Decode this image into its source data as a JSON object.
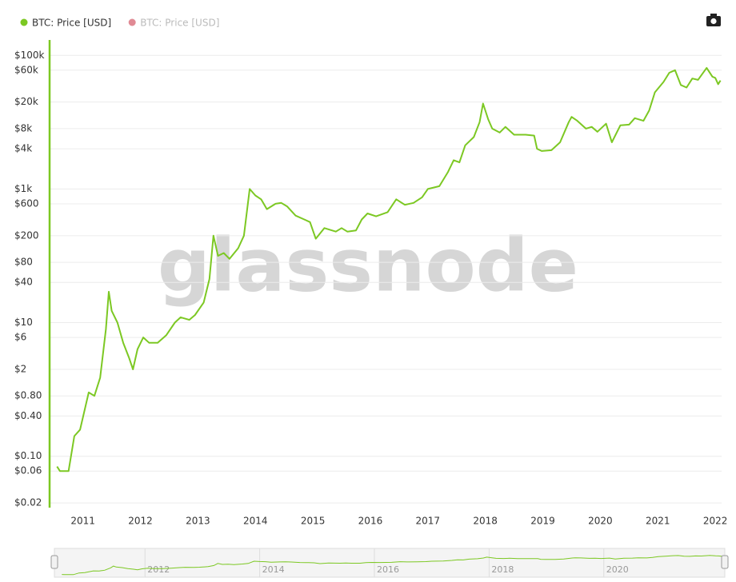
{
  "chart_data": {
    "type": "line",
    "watermark": "glassnode",
    "log_y": true,
    "grid": true,
    "axis_color": "#7cc823",
    "x": [
      2010.55,
      2010.6,
      2010.75,
      2010.85,
      2010.95,
      2011.1,
      2011.2,
      2011.3,
      2011.4,
      2011.45,
      2011.5,
      2011.6,
      2011.7,
      2011.8,
      2011.87,
      2011.95,
      2012.05,
      2012.15,
      2012.3,
      2012.45,
      2012.6,
      2012.7,
      2012.85,
      2012.95,
      2013.1,
      2013.2,
      2013.27,
      2013.35,
      2013.45,
      2013.55,
      2013.7,
      2013.8,
      2013.9,
      2014.0,
      2014.1,
      2014.2,
      2014.35,
      2014.45,
      2014.55,
      2014.7,
      2014.85,
      2014.95,
      2015.05,
      2015.2,
      2015.4,
      2015.5,
      2015.6,
      2015.75,
      2015.85,
      2015.95,
      2016.1,
      2016.3,
      2016.45,
      2016.6,
      2016.75,
      2016.9,
      2017.0,
      2017.2,
      2017.35,
      2017.45,
      2017.55,
      2017.65,
      2017.8,
      2017.9,
      2017.96,
      2018.05,
      2018.12,
      2018.25,
      2018.35,
      2018.5,
      2018.7,
      2018.85,
      2018.9,
      2018.98,
      2019.15,
      2019.3,
      2019.45,
      2019.5,
      2019.6,
      2019.75,
      2019.85,
      2019.95,
      2020.1,
      2020.2,
      2020.35,
      2020.5,
      2020.6,
      2020.75,
      2020.85,
      2020.95,
      2021.1,
      2021.2,
      2021.3,
      2021.4,
      2021.5,
      2021.6,
      2021.7,
      2021.85,
      2021.95,
      2022.0,
      2022.05,
      2022.09
    ],
    "series": [
      {
        "name": "BTC: Price [USD]",
        "color": "#7cc823",
        "values": [
          0.07,
          0.06,
          0.06,
          0.2,
          0.25,
          0.9,
          0.8,
          1.5,
          8,
          29,
          15,
          10,
          5,
          3,
          2,
          4,
          6,
          5,
          5,
          6.5,
          10,
          12,
          11,
          13,
          20,
          45,
          200,
          100,
          110,
          90,
          130,
          200,
          1000,
          800,
          700,
          500,
          600,
          620,
          550,
          400,
          350,
          320,
          180,
          260,
          230,
          260,
          230,
          240,
          350,
          430,
          390,
          450,
          700,
          580,
          620,
          750,
          1000,
          1100,
          1800,
          2700,
          2500,
          4500,
          6000,
          10000,
          19000,
          11000,
          8000,
          7000,
          8500,
          6500,
          6500,
          6300,
          4000,
          3700,
          3800,
          5000,
          10000,
          12000,
          10500,
          8000,
          8500,
          7200,
          9500,
          5000,
          9000,
          9200,
          11500,
          10500,
          15000,
          28000,
          40000,
          55000,
          60000,
          36000,
          33000,
          45000,
          43000,
          65000,
          48000,
          46000,
          37000,
          42000
        ]
      }
    ],
    "hidden_series": [
      {
        "name": "BTC: Price [USD]",
        "color": "#e08a94"
      }
    ],
    "xlim": [
      2010.42,
      2022.11
    ],
    "xticks": [
      2011,
      2012,
      2013,
      2014,
      2015,
      2016,
      2017,
      2018,
      2019,
      2020,
      2021,
      2022
    ],
    "ylim": [
      0.017,
      170000
    ],
    "yticks": [
      {
        "value": 100000,
        "label": "$100k"
      },
      {
        "value": 60000,
        "label": "$60k"
      },
      {
        "value": 20000,
        "label": "$20k"
      },
      {
        "value": 8000,
        "label": "$8k"
      },
      {
        "value": 4000,
        "label": "$4k"
      },
      {
        "value": 1000,
        "label": "$1k"
      },
      {
        "value": 600,
        "label": "$600"
      },
      {
        "value": 200,
        "label": "$200"
      },
      {
        "value": 80,
        "label": "$80"
      },
      {
        "value": 40,
        "label": "$40"
      },
      {
        "value": 10,
        "label": "$10"
      },
      {
        "value": 6,
        "label": "$6"
      },
      {
        "value": 2,
        "label": "$2"
      },
      {
        "value": 0.8,
        "label": "$0.80"
      },
      {
        "value": 0.4,
        "label": "$0.40"
      },
      {
        "value": 0.1,
        "label": "$0.10"
      },
      {
        "value": 0.06,
        "label": "$0.06"
      },
      {
        "value": 0.02,
        "label": "$0.02"
      }
    ],
    "navigator_xticks": [
      2012,
      2014,
      2016,
      2018,
      2020
    ]
  }
}
